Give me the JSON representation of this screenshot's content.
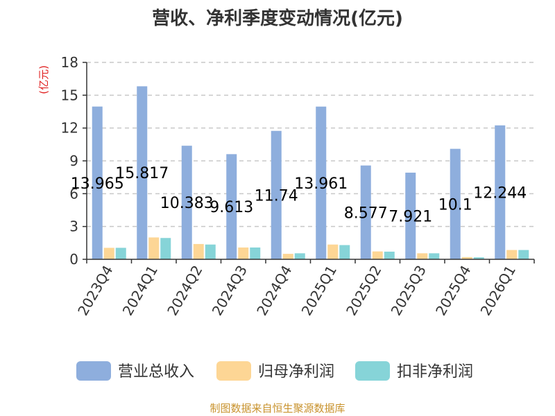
{
  "chart_data": {
    "type": "bar",
    "title": "营收、净利季度变动情况(亿元)",
    "ylabel": "(亿元)",
    "ylim": [
      0,
      18
    ],
    "yticks": [
      0,
      3,
      6,
      9,
      12,
      15,
      18
    ],
    "grid": true,
    "legend_position": "bottom",
    "categories": [
      "2023Q4",
      "2024Q1",
      "2024Q2",
      "2024Q3",
      "2024Q4",
      "2025Q1",
      "2025Q2",
      "2025Q3",
      "2025Q4",
      "2026Q1"
    ],
    "series": [
      {
        "name": "营业总收入",
        "color": "#8eaedd",
        "values": [
          13.965,
          15.817,
          10.383,
          9.613,
          11.74,
          13.961,
          8.577,
          7.921,
          10.1,
          12.244
        ],
        "labels": [
          "13.965",
          "15.817",
          "10.383",
          "9.613",
          "11.74",
          "13.961",
          "8.577",
          "7.921",
          "10.1",
          "12.244"
        ]
      },
      {
        "name": "归母净利润",
        "color": "#fdd695",
        "values": [
          1.05,
          2.0,
          1.4,
          1.08,
          0.5,
          1.35,
          0.72,
          0.55,
          0.2,
          0.85
        ]
      },
      {
        "name": "扣非净利润",
        "color": "#86d4d8",
        "values": [
          1.05,
          1.95,
          1.35,
          1.08,
          0.55,
          1.3,
          0.7,
          0.55,
          0.18,
          0.85
        ]
      }
    ],
    "source": "制图数据来自恒生聚源数据库"
  }
}
